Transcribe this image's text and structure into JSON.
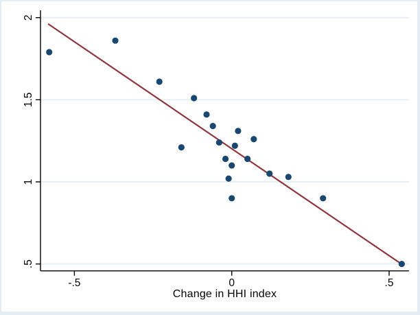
{
  "window": {
    "background": "#ffffff",
    "frame_color": "#e3edf1"
  },
  "chart_data": {
    "type": "scatter",
    "title": "",
    "xlabel": "Change in HHI index",
    "ylabel": "",
    "legend": "none",
    "grid": "horizontal",
    "x_ticks": {
      "values": [
        -0.5,
        0,
        0.5
      ],
      "labels": [
        "-.5",
        "0",
        ".5"
      ]
    },
    "y_ticks": {
      "values": [
        0.5,
        1,
        1.5,
        2
      ],
      "labels": [
        ".5",
        "1",
        "1.5",
        "2"
      ]
    },
    "xlim": [
      -0.61,
      0.56
    ],
    "ylim": [
      0.46,
      2.05
    ],
    "points": [
      [
        -0.58,
        1.79
      ],
      [
        -0.37,
        1.86
      ],
      [
        -0.23,
        1.61
      ],
      [
        -0.12,
        1.51
      ],
      [
        -0.08,
        1.41
      ],
      [
        -0.16,
        1.21
      ],
      [
        -0.06,
        1.34
      ],
      [
        0.02,
        1.31
      ],
      [
        0.07,
        1.26
      ],
      [
        -0.04,
        1.24
      ],
      [
        0.01,
        1.22
      ],
      [
        -0.02,
        1.14
      ],
      [
        0.05,
        1.14
      ],
      [
        0.0,
        1.1
      ],
      [
        -0.01,
        1.02
      ],
      [
        0.12,
        1.05
      ],
      [
        0.18,
        1.03
      ],
      [
        0.0,
        0.9
      ],
      [
        0.29,
        0.9
      ],
      [
        0.54,
        0.5
      ]
    ],
    "fit_line": {
      "x1": -0.582,
      "y1": 1.96,
      "x2": 0.539,
      "y2": 0.5
    },
    "colors": {
      "marker": "#1a476f",
      "fit_line": "#90353b",
      "grid": "#e6eff3",
      "frame": "#e3edf1",
      "axis": "#000000",
      "tick_text": "#000000"
    }
  }
}
